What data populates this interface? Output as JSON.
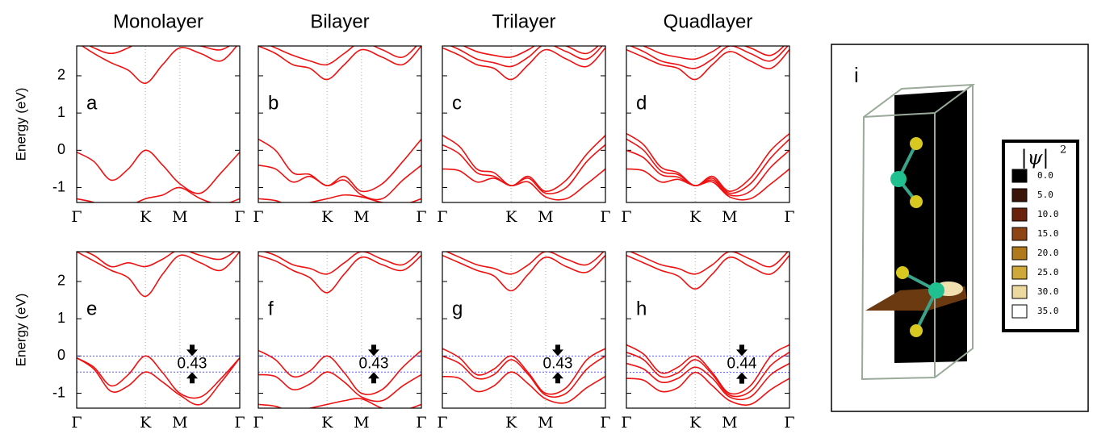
{
  "chart_data": [
    {
      "type": "line",
      "title": "Monolayer",
      "label": "a",
      "ylabel": "Energy (eV)",
      "x": [
        0,
        0.25,
        0.5,
        0.75,
        1,
        1.25,
        1.5,
        1.8,
        2.1,
        2.37
      ],
      "xlim": [
        0,
        2.37
      ],
      "ylim": [
        -1.4,
        2.8
      ],
      "yticks": [
        -1,
        0,
        1,
        2
      ],
      "xticks": [
        {
          "value": 0,
          "label": "Γ"
        },
        {
          "value": 1,
          "label": "K"
        },
        {
          "value": 1.5,
          "label": "M"
        },
        {
          "value": 2.37,
          "label": "Γ"
        }
      ],
      "grid": true,
      "series": [
        {
          "color": "#ee1111",
          "values": [
            2.9,
            2.6,
            2.35,
            2.15,
            1.8,
            2.3,
            2.75,
            2.6,
            2.4,
            2.9
          ]
        },
        {
          "color": "#ee1111",
          "values": [
            3.0,
            2.75,
            2.6,
            2.75,
            3.0,
            2.9,
            2.9,
            2.8,
            2.7,
            3.0
          ]
        },
        {
          "color": "#ee1111",
          "values": [
            -0.05,
            -0.3,
            -0.8,
            -0.5,
            0,
            -0.4,
            -0.9,
            -1.15,
            -0.6,
            -0.05
          ]
        },
        {
          "color": "#ee1111",
          "values": [
            -1.3,
            -1.4,
            -1.6,
            -1.5,
            -1.3,
            -1.2,
            -1.0,
            -1.3,
            -1.45,
            -1.3
          ]
        }
      ]
    },
    {
      "type": "line",
      "title": "Bilayer",
      "label": "b",
      "x": [
        0,
        0.25,
        0.5,
        0.75,
        1,
        1.25,
        1.5,
        1.8,
        2.1,
        2.37
      ],
      "xlim": [
        0,
        2.37
      ],
      "ylim": [
        -1.4,
        2.8
      ],
      "yticks": [
        -1,
        0,
        1,
        2
      ],
      "xticks": [
        {
          "value": 0,
          "label": "Γ"
        },
        {
          "value": 1,
          "label": "K"
        },
        {
          "value": 1.5,
          "label": "M"
        },
        {
          "value": 2.37,
          "label": "Γ"
        }
      ],
      "grid": true,
      "series": [
        {
          "color": "#ee1111",
          "values": [
            2.8,
            2.6,
            2.3,
            2.2,
            1.9,
            2.3,
            2.7,
            2.5,
            2.3,
            2.8
          ]
        },
        {
          "color": "#ee1111",
          "values": [
            2.95,
            2.75,
            2.55,
            2.4,
            2.3,
            2.6,
            2.9,
            2.7,
            2.5,
            2.95
          ]
        },
        {
          "color": "#ee1111",
          "values": [
            0.3,
            0.0,
            -0.6,
            -0.65,
            -0.95,
            -0.7,
            -1.1,
            -0.9,
            -0.3,
            0.3
          ]
        },
        {
          "color": "#ee1111",
          "values": [
            -0.4,
            -0.5,
            -0.85,
            -0.7,
            -0.95,
            -0.8,
            -1.2,
            -1.3,
            -0.8,
            -0.4
          ]
        },
        {
          "color": "#ee1111",
          "values": [
            -1.3,
            -1.35,
            -1.5,
            -1.4,
            -1.3,
            -1.2,
            -1.25,
            -1.4,
            -1.45,
            -1.3
          ]
        }
      ]
    },
    {
      "type": "line",
      "title": "Trilayer",
      "label": "c",
      "x": [
        0,
        0.25,
        0.5,
        0.75,
        1,
        1.25,
        1.5,
        1.8,
        2.1,
        2.37
      ],
      "xlim": [
        0,
        2.37
      ],
      "ylim": [
        -1.4,
        2.8
      ],
      "yticks": [
        -1,
        0,
        1,
        2
      ],
      "xticks": [
        {
          "value": 0,
          "label": "Γ"
        },
        {
          "value": 1,
          "label": "K"
        },
        {
          "value": 1.5,
          "label": "M"
        },
        {
          "value": 2.37,
          "label": "Γ"
        }
      ],
      "grid": true,
      "series": [
        {
          "color": "#ee1111",
          "values": [
            2.75,
            2.55,
            2.3,
            2.2,
            1.9,
            2.3,
            2.7,
            2.45,
            2.25,
            2.75
          ]
        },
        {
          "color": "#ee1111",
          "values": [
            2.9,
            2.7,
            2.45,
            2.35,
            2.25,
            2.5,
            2.85,
            2.65,
            2.45,
            2.9
          ]
        },
        {
          "color": "#ee1111",
          "values": [
            3.0,
            2.85,
            2.65,
            2.55,
            2.5,
            2.7,
            2.95,
            2.8,
            2.6,
            3.0
          ]
        },
        {
          "color": "#ee1111",
          "values": [
            0.4,
            0.1,
            -0.5,
            -0.6,
            -0.95,
            -0.7,
            -1.1,
            -0.8,
            -0.1,
            0.4
          ]
        },
        {
          "color": "#ee1111",
          "values": [
            0.15,
            -0.1,
            -0.6,
            -0.7,
            -0.95,
            -0.75,
            -1.15,
            -1.0,
            -0.3,
            0.15
          ]
        },
        {
          "color": "#ee1111",
          "values": [
            -0.5,
            -0.55,
            -0.85,
            -0.75,
            -0.95,
            -0.85,
            -1.25,
            -1.3,
            -0.9,
            -0.5
          ]
        }
      ]
    },
    {
      "type": "line",
      "title": "Quadlayer",
      "label": "d",
      "x": [
        0,
        0.25,
        0.5,
        0.75,
        1,
        1.25,
        1.5,
        1.8,
        2.1,
        2.37
      ],
      "xlim": [
        0,
        2.37
      ],
      "ylim": [
        -1.4,
        2.8
      ],
      "yticks": [
        -1,
        0,
        1,
        2
      ],
      "xticks": [
        {
          "value": 0,
          "label": "Γ"
        },
        {
          "value": 1,
          "label": "K"
        },
        {
          "value": 1.5,
          "label": "M"
        },
        {
          "value": 2.37,
          "label": "Γ"
        }
      ],
      "grid": true,
      "series": [
        {
          "color": "#ee1111",
          "values": [
            2.7,
            2.5,
            2.3,
            2.2,
            1.9,
            2.3,
            2.65,
            2.4,
            2.2,
            2.7
          ]
        },
        {
          "color": "#ee1111",
          "values": [
            2.85,
            2.65,
            2.4,
            2.3,
            2.2,
            2.45,
            2.8,
            2.6,
            2.4,
            2.85
          ]
        },
        {
          "color": "#ee1111",
          "values": [
            2.95,
            2.8,
            2.6,
            2.5,
            2.45,
            2.65,
            2.9,
            2.75,
            2.55,
            2.95
          ]
        },
        {
          "color": "#ee1111",
          "values": [
            0.45,
            0.15,
            -0.45,
            -0.6,
            -0.95,
            -0.7,
            -1.1,
            -0.75,
            0.0,
            0.45
          ]
        },
        {
          "color": "#ee1111",
          "values": [
            0.3,
            0.0,
            -0.55,
            -0.65,
            -0.95,
            -0.75,
            -1.15,
            -0.9,
            -0.2,
            0.3
          ]
        },
        {
          "color": "#ee1111",
          "values": [
            0.0,
            -0.2,
            -0.65,
            -0.72,
            -0.95,
            -0.8,
            -1.2,
            -1.1,
            -0.45,
            0.0
          ]
        },
        {
          "color": "#ee1111",
          "values": [
            -0.5,
            -0.55,
            -0.85,
            -0.78,
            -0.95,
            -0.85,
            -1.25,
            -1.3,
            -0.9,
            -0.5
          ]
        }
      ]
    },
    {
      "type": "line",
      "label": "e",
      "ylabel": "Energy (eV)",
      "x": [
        0,
        0.25,
        0.5,
        0.75,
        1,
        1.25,
        1.5,
        1.8,
        2.1,
        2.37
      ],
      "xlim": [
        0,
        2.37
      ],
      "ylim": [
        -1.4,
        2.8
      ],
      "yticks": [
        -1,
        0,
        1,
        2
      ],
      "xticks": [
        {
          "value": 0,
          "label": "Γ"
        },
        {
          "value": 1,
          "label": "K"
        },
        {
          "value": 1.5,
          "label": "M"
        },
        {
          "value": 2.37,
          "label": "Γ"
        }
      ],
      "grid": true,
      "hlines": [
        0,
        -0.43
      ],
      "hline_color": "#5555ff",
      "annotation": "0.43",
      "series": [
        {
          "color": "#ee1111",
          "values": [
            2.8,
            2.55,
            2.3,
            2.1,
            1.6,
            2.2,
            2.7,
            2.5,
            2.3,
            2.8
          ]
        },
        {
          "color": "#ee1111",
          "values": [
            2.9,
            2.7,
            2.4,
            2.5,
            2.4,
            2.6,
            2.85,
            2.7,
            2.6,
            2.9
          ]
        },
        {
          "color": "#ee1111",
          "values": [
            -0.05,
            -0.3,
            -0.8,
            -0.5,
            0,
            -0.45,
            -1.0,
            -1.1,
            -0.6,
            -0.05
          ]
        },
        {
          "color": "#ee1111",
          "values": [
            -0.05,
            -0.35,
            -0.95,
            -0.8,
            -0.43,
            -0.7,
            -1.05,
            -1.3,
            -0.7,
            -0.05
          ]
        }
      ]
    },
    {
      "type": "line",
      "label": "f",
      "x": [
        0,
        0.25,
        0.5,
        0.75,
        1,
        1.25,
        1.5,
        1.8,
        2.1,
        2.37
      ],
      "xlim": [
        0,
        2.37
      ],
      "ylim": [
        -1.4,
        2.8
      ],
      "yticks": [
        -1,
        0,
        1,
        2
      ],
      "xticks": [
        {
          "value": 0,
          "label": "Γ"
        },
        {
          "value": 1,
          "label": "K"
        },
        {
          "value": 1.5,
          "label": "M"
        },
        {
          "value": 2.37,
          "label": "Γ"
        }
      ],
      "grid": true,
      "hlines": [
        0,
        -0.43
      ],
      "hline_color": "#5555ff",
      "annotation": "0.43",
      "series": [
        {
          "color": "#ee1111",
          "values": [
            2.7,
            2.55,
            2.3,
            2.1,
            1.7,
            2.2,
            2.65,
            2.45,
            2.3,
            2.7
          ]
        },
        {
          "color": "#ee1111",
          "values": [
            2.85,
            2.7,
            2.45,
            2.35,
            2.2,
            2.5,
            2.8,
            2.6,
            2.45,
            2.85
          ]
        },
        {
          "color": "#ee1111",
          "values": [
            0.15,
            -0.1,
            -0.55,
            -0.4,
            0,
            -0.45,
            -1.0,
            -0.9,
            -0.3,
            0.15
          ]
        },
        {
          "color": "#ee1111",
          "values": [
            -0.5,
            -0.55,
            -0.9,
            -0.75,
            -0.43,
            -0.7,
            -1.1,
            -1.2,
            -0.8,
            -0.5
          ]
        },
        {
          "color": "#ee1111",
          "values": [
            -1.3,
            -1.35,
            -1.5,
            -1.4,
            -1.3,
            -1.2,
            -1.15,
            -1.4,
            -1.45,
            -1.3
          ]
        }
      ]
    },
    {
      "type": "line",
      "label": "g",
      "x": [
        0,
        0.25,
        0.5,
        0.75,
        1,
        1.25,
        1.5,
        1.8,
        2.1,
        2.37
      ],
      "xlim": [
        0,
        2.37
      ],
      "ylim": [
        -1.4,
        2.8
      ],
      "yticks": [
        -1,
        0,
        1,
        2
      ],
      "xticks": [
        {
          "value": 0,
          "label": "Γ"
        },
        {
          "value": 1,
          "label": "K"
        },
        {
          "value": 1.5,
          "label": "M"
        },
        {
          "value": 2.37,
          "label": "Γ"
        }
      ],
      "grid": true,
      "hlines": [
        0,
        -0.43
      ],
      "hline_color": "#5555ff",
      "annotation": "0.43",
      "series": [
        {
          "color": "#ee1111",
          "values": [
            2.7,
            2.5,
            2.3,
            2.15,
            1.75,
            2.2,
            2.65,
            2.4,
            2.25,
            2.7
          ]
        },
        {
          "color": "#ee1111",
          "values": [
            2.85,
            2.65,
            2.45,
            2.35,
            2.2,
            2.45,
            2.8,
            2.6,
            2.45,
            2.85
          ]
        },
        {
          "color": "#ee1111",
          "values": [
            0.2,
            -0.05,
            -0.5,
            -0.35,
            0,
            -0.45,
            -1.0,
            -0.85,
            -0.1,
            0.2
          ]
        },
        {
          "color": "#ee1111",
          "values": [
            0.0,
            -0.2,
            -0.6,
            -0.5,
            -0.1,
            -0.5,
            -1.05,
            -1.0,
            -0.35,
            0.0
          ]
        },
        {
          "color": "#ee1111",
          "values": [
            -0.55,
            -0.6,
            -0.95,
            -0.8,
            -0.43,
            -0.75,
            -1.15,
            -1.25,
            -0.85,
            -0.55
          ]
        }
      ]
    },
    {
      "type": "line",
      "label": "h",
      "x": [
        0,
        0.25,
        0.5,
        0.75,
        1,
        1.25,
        1.5,
        1.8,
        2.1,
        2.37
      ],
      "xlim": [
        0,
        2.37
      ],
      "ylim": [
        -1.4,
        2.8
      ],
      "yticks": [
        -1,
        0,
        1,
        2
      ],
      "xticks": [
        {
          "value": 0,
          "label": "Γ"
        },
        {
          "value": 1,
          "label": "K"
        },
        {
          "value": 1.5,
          "label": "M"
        },
        {
          "value": 2.37,
          "label": "Γ"
        }
      ],
      "grid": true,
      "hlines": [
        0,
        -0.44
      ],
      "hline_color": "#5555ff",
      "annotation": "0.44",
      "series": [
        {
          "color": "#ee1111",
          "values": [
            2.7,
            2.5,
            2.3,
            2.15,
            1.8,
            2.2,
            2.65,
            2.4,
            2.2,
            2.7
          ]
        },
        {
          "color": "#ee1111",
          "values": [
            2.85,
            2.65,
            2.45,
            2.35,
            2.2,
            2.45,
            2.8,
            2.6,
            2.4,
            2.85
          ]
        },
        {
          "color": "#ee1111",
          "values": [
            0.3,
            0.05,
            -0.45,
            -0.3,
            0,
            -0.45,
            -1.0,
            -0.8,
            0.0,
            0.3
          ]
        },
        {
          "color": "#ee1111",
          "values": [
            0.1,
            -0.1,
            -0.55,
            -0.45,
            -0.1,
            -0.5,
            -1.05,
            -0.95,
            -0.25,
            0.1
          ]
        },
        {
          "color": "#ee1111",
          "values": [
            -0.2,
            -0.35,
            -0.7,
            -0.6,
            -0.3,
            -0.6,
            -1.1,
            -1.1,
            -0.5,
            -0.2
          ]
        },
        {
          "color": "#ee1111",
          "values": [
            -0.6,
            -0.65,
            -0.95,
            -0.85,
            -0.44,
            -0.8,
            -1.2,
            -1.3,
            -0.9,
            -0.6
          ]
        }
      ]
    }
  ],
  "structure": {
    "label": "i",
    "colorbar": {
      "title": "|ψ|",
      "superscript": "2",
      "levels": [
        {
          "label": "0.0",
          "color": "#000000"
        },
        {
          "label": "5.0",
          "color": "#3a1408"
        },
        {
          "label": "10.0",
          "color": "#6b220c"
        },
        {
          "label": "15.0",
          "color": "#8e4514"
        },
        {
          "label": "20.0",
          "color": "#b07a1c"
        },
        {
          "label": "25.0",
          "color": "#cfa83a"
        },
        {
          "label": "30.0",
          "color": "#ecd9a0"
        },
        {
          "label": "35.0",
          "color": "#ffffff"
        }
      ]
    }
  }
}
